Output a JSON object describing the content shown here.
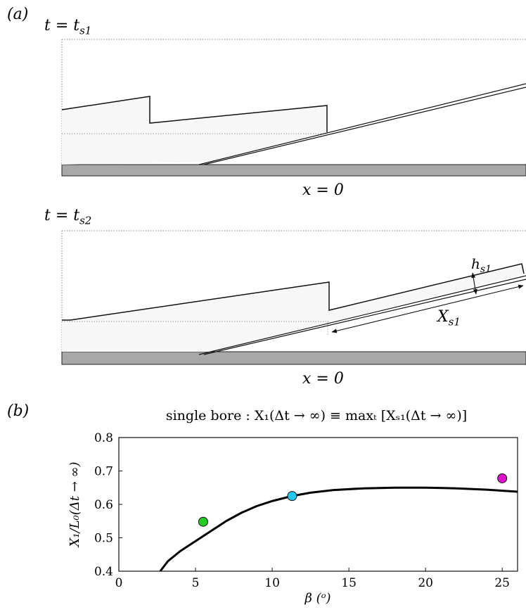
{
  "panel_a": {
    "tag": "(a)",
    "snapshot1": {
      "time_label": {
        "var": "t = t",
        "sub": "s1"
      },
      "x_label": "x = 0"
    },
    "snapshot2": {
      "time_label": {
        "var": "t = t",
        "sub": "s2"
      },
      "x_label": "x = 0",
      "h_label": {
        "var": "h",
        "sub": "s1"
      },
      "X_label": {
        "var": "X",
        "sub": "s1"
      }
    }
  },
  "panel_b": {
    "tag": "(b)",
    "chart_data": {
      "type": "line",
      "title": "single bore : X₁(Δt → ∞) ≡ maxₜ [Xₛ₁(Δt → ∞)]",
      "xlabel": "β (ᵒ)",
      "ylabel": "X₁/L₀(Δt → ∞)",
      "xlim": [
        0,
        26
      ],
      "ylim": [
        0.4,
        0.8
      ],
      "xticks": [
        0,
        5,
        10,
        15,
        20,
        25
      ],
      "yticks": [
        0.4,
        0.5,
        0.6,
        0.7,
        0.8
      ],
      "grid": false,
      "series": [
        {
          "x": [
            2.7,
            3.2,
            4.0,
            5.0,
            6.0,
            7.0,
            8.0,
            9.0,
            10.0,
            11.3,
            12.5,
            14.0,
            16.0,
            18.0,
            20.0,
            22.0,
            24.0,
            26.0
          ],
          "y": [
            0.4,
            0.43,
            0.46,
            0.49,
            0.52,
            0.55,
            0.575,
            0.595,
            0.61,
            0.625,
            0.635,
            0.643,
            0.648,
            0.65,
            0.65,
            0.648,
            0.644,
            0.638
          ],
          "color": "#000000"
        }
      ],
      "points": [
        {
          "x": 5.5,
          "y": 0.548,
          "color": "#22cc22"
        },
        {
          "x": 11.3,
          "y": 0.625,
          "color": "#22c8f0"
        },
        {
          "x": 25.0,
          "y": 0.678,
          "color": "#dd11cc"
        }
      ]
    }
  }
}
